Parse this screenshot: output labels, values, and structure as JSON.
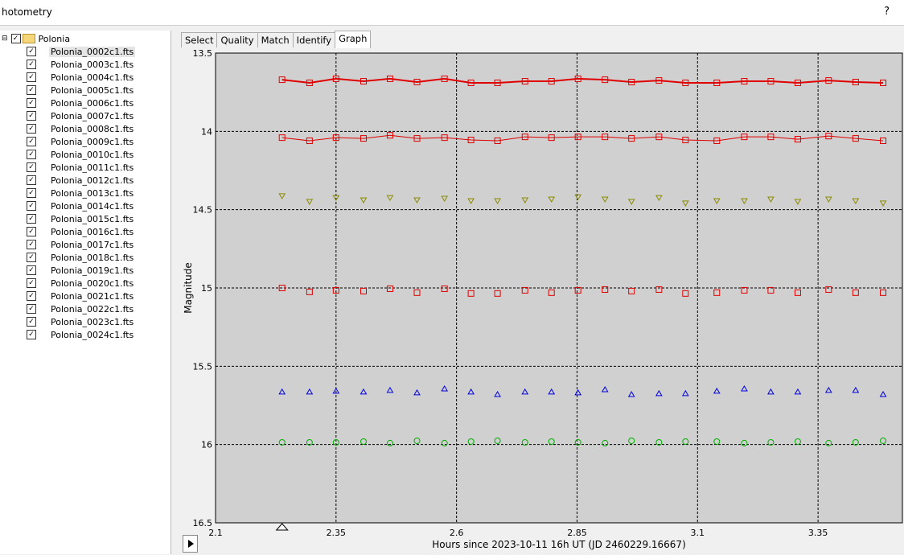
{
  "window": {
    "title": "hotometry",
    "help": "?"
  },
  "tree": {
    "root": "Polonia",
    "files": [
      "Polonia_0002c1.fts",
      "Polonia_0003c1.fts",
      "Polonia_0004c1.fts",
      "Polonia_0005c1.fts",
      "Polonia_0006c1.fts",
      "Polonia_0007c1.fts",
      "Polonia_0008c1.fts",
      "Polonia_0009c1.fts",
      "Polonia_0010c1.fts",
      "Polonia_0011c1.fts",
      "Polonia_0012c1.fts",
      "Polonia_0013c1.fts",
      "Polonia_0014c1.fts",
      "Polonia_0015c1.fts",
      "Polonia_0016c1.fts",
      "Polonia_0017c1.fts",
      "Polonia_0018c1.fts",
      "Polonia_0019c1.fts",
      "Polonia_0020c1.fts",
      "Polonia_0021c1.fts",
      "Polonia_0022c1.fts",
      "Polonia_0023c1.fts",
      "Polonia_0024c1.fts"
    ]
  },
  "tabs": [
    "Select",
    "Quality",
    "Match",
    "Identify",
    "Graph"
  ],
  "chart_data": {
    "type": "scatter",
    "x_label": "Hours since 2023-10-11 16h UT (JD 2460229.16667)",
    "y_label": "Magnitude",
    "x": [
      2.238,
      2.295,
      2.35,
      2.407,
      2.462,
      2.518,
      2.575,
      2.63,
      2.685,
      2.742,
      2.797,
      2.852,
      2.908,
      2.963,
      3.02,
      3.075,
      3.14,
      3.197,
      3.252,
      3.308,
      3.372,
      3.428,
      3.485
    ],
    "xlim": [
      2.1,
      3.525
    ],
    "xticks": [
      2.1,
      2.35,
      2.6,
      2.85,
      3.1,
      3.35
    ],
    "ylim": [
      16.5,
      13.5
    ],
    "yticks": [
      13.5,
      14,
      14.5,
      15,
      15.5,
      16,
      16.5
    ],
    "grid": true,
    "series": [
      {
        "color": "#e00000",
        "marker": "square",
        "line": 2,
        "values": [
          13.67,
          13.69,
          13.664,
          13.68,
          13.664,
          13.685,
          13.664,
          13.69,
          13.69,
          13.68,
          13.68,
          13.664,
          13.67,
          13.685,
          13.675,
          13.69,
          13.69,
          13.68,
          13.68,
          13.69,
          13.675,
          13.685,
          13.69
        ]
      },
      {
        "color": "#e00000",
        "marker": "square",
        "line": 1,
        "values": [
          14.04,
          14.06,
          14.04,
          14.045,
          14.025,
          14.045,
          14.04,
          14.055,
          14.06,
          14.035,
          14.04,
          14.035,
          14.035,
          14.045,
          14.035,
          14.055,
          14.06,
          14.035,
          14.035,
          14.05,
          14.03,
          14.045,
          14.06
        ]
      },
      {
        "color": "#8a8a00",
        "marker": "triangle-down",
        "line": 0,
        "values": [
          14.414,
          14.45,
          14.425,
          14.44,
          14.425,
          14.44,
          14.43,
          14.445,
          14.445,
          14.44,
          14.435,
          14.42,
          14.435,
          14.45,
          14.425,
          14.46,
          14.445,
          14.445,
          14.435,
          14.45,
          14.435,
          14.445,
          14.46
        ]
      },
      {
        "color": "#e00000",
        "marker": "square",
        "line": 0,
        "values": [
          15.0,
          15.025,
          15.015,
          15.02,
          15.005,
          15.03,
          15.005,
          15.035,
          15.035,
          15.015,
          15.03,
          15.015,
          15.01,
          15.02,
          15.01,
          15.035,
          15.03,
          15.015,
          15.015,
          15.03,
          15.01,
          15.03,
          15.03
        ]
      },
      {
        "color": "#0000e0",
        "marker": "triangle-up",
        "line": 0,
        "values": [
          15.662,
          15.662,
          15.657,
          15.662,
          15.652,
          15.667,
          15.642,
          15.662,
          15.678,
          15.662,
          15.662,
          15.667,
          15.647,
          15.678,
          15.672,
          15.672,
          15.657,
          15.642,
          15.662,
          15.662,
          15.652,
          15.652,
          15.678
        ]
      },
      {
        "color": "#00b000",
        "marker": "circle",
        "line": 0,
        "values": [
          15.986,
          15.986,
          15.986,
          15.981,
          15.991,
          15.976,
          15.991,
          15.981,
          15.976,
          15.986,
          15.981,
          15.986,
          15.991,
          15.976,
          15.986,
          15.981,
          15.981,
          15.991,
          15.986,
          15.981,
          15.991,
          15.986,
          15.976
        ]
      }
    ]
  }
}
